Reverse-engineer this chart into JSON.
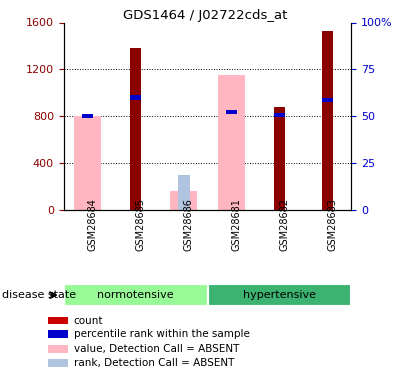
{
  "title": "GDS1464 / J02722cds_at",
  "samples": [
    "GSM28684",
    "GSM28685",
    "GSM28686",
    "GSM28681",
    "GSM28682",
    "GSM28683"
  ],
  "count_values": [
    0,
    1380,
    0,
    0,
    880,
    1530
  ],
  "percentile_rank_left": [
    800,
    960,
    0,
    840,
    810,
    940
  ],
  "absent_value": [
    800,
    0,
    160,
    1150,
    0,
    0
  ],
  "absent_rank": [
    0,
    0,
    300,
    0,
    0,
    0
  ],
  "ylim_left": [
    0,
    1600
  ],
  "ylim_right": [
    0,
    100
  ],
  "yticks_left": [
    0,
    400,
    800,
    1200,
    1600
  ],
  "ytick_labels_left": [
    "0",
    "400",
    "800",
    "1200",
    "1600"
  ],
  "ytick_labels_right": [
    "0",
    "25",
    "50",
    "75",
    "100%"
  ],
  "color_count": "#8B0000",
  "color_percentile": "#0000CC",
  "color_absent_value": "#FFB6C1",
  "color_absent_rank": "#B0C4E0",
  "color_normotensive_bg": "#98FB98",
  "color_hypertensive_bg": "#3CB371",
  "color_sample_bg": "#C8C8C8",
  "group_label": "disease state",
  "legend_items": [
    [
      "#CC0000",
      "count"
    ],
    [
      "#0000CC",
      "percentile rank within the sample"
    ],
    [
      "#FFB6C1",
      "value, Detection Call = ABSENT"
    ],
    [
      "#B0C4E0",
      "rank, Detection Call = ABSENT"
    ]
  ]
}
